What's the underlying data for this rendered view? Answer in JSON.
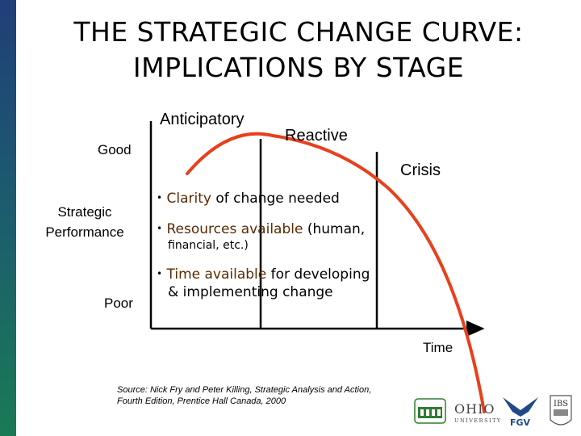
{
  "title": {
    "line1": "THE STRATEGIC CHANGE CURVE:",
    "line2": "IMPLICATIONS BY STAGE"
  },
  "stages": {
    "anticipatory": "Anticipatory",
    "reactive": "Reactive",
    "crisis": "Crisis"
  },
  "axis": {
    "good": "Good",
    "poor": "Poor",
    "y_label_line1": "Strategic",
    "y_label_line2": "Performance",
    "x_label": "Time"
  },
  "bullets": [
    {
      "bullet": "•",
      "highlight": "Clarity",
      "rest": " of change needed"
    },
    {
      "bullet": "•",
      "highlight": "Resources available",
      "rest": " (human,",
      "cont": "financial, etc.)"
    },
    {
      "bullet": "•",
      "highlight": "Time available",
      "rest": " for developing",
      "cont": "& implementing change"
    }
  ],
  "source": {
    "line1": "Source:  Nick Fry and Peter Killing, Strategic Analysis and Action,",
    "line2": "Fourth Edition, Prentice Hall Canada, 2000"
  },
  "logos": {
    "ohio_line1": "OHIO",
    "ohio_line2": "UNIVERSITY",
    "fgv": "FGV",
    "ibs": "IBS"
  },
  "colors": {
    "curve": "#e8401c",
    "sidebar_top": "#1f3f78",
    "sidebar_bottom": "#1a7a55"
  }
}
